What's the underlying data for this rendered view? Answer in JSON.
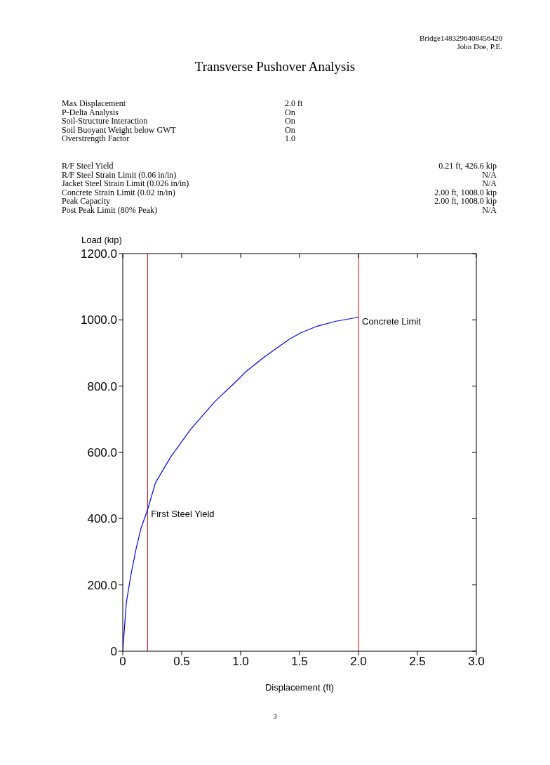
{
  "chart_data": {
    "type": "line",
    "title": "Transverse Pushover Analysis",
    "xlabel": "Displacement (ft)",
    "ylabel": "Load (kip)",
    "annotations": [
      "Bridge1483296408456420",
      "John Doe, P.E.",
      "Max Displacement",
      "2.0 ft",
      "P-Delta Analysis",
      "On",
      "Soil-Structure Interaction",
      "On",
      "Soil Buoyant Weight below GWT",
      "On",
      "Overstrength Factor",
      "1.0",
      "R/F Steel Yield",
      "0.21 ft, 426.6 kip",
      "R/F Steel Strain Limit (0.06 in/in)",
      "N/A",
      "Jacket Steel Strain Limit (0.026 in/in)",
      "N/A",
      "Concrete Strain Limit (0.02 in/in)",
      "2.00 ft, 1008.0 kip",
      "Peak Capacity",
      "2.00 ft, 1008.0 kip",
      "Post Peak Limit (80% Peak)",
      "N/A",
      "3"
    ],
    "x": [
      0,
      0.03,
      0.071,
      0.112,
      0.153,
      0.21,
      0.277,
      0.41,
      0.575,
      0.78,
      0.975,
      1.036,
      1.2,
      1.41,
      1.51,
      1.65,
      1.81,
      2.0
    ],
    "series": [
      {
        "color": "#0000ff",
        "values": [
          0,
          146,
          234,
          307,
          369,
          426.6,
          508,
          588,
          669,
          753,
          819,
          841,
          888,
          941,
          961,
          981,
          996,
          1008.0
        ]
      }
    ],
    "xlim": [
      0,
      3
    ],
    "xticks": [
      0,
      0.5,
      {
        "value": 1,
        "label": "1.0"
      },
      1.5,
      {
        "value": 2,
        "label": "2.0"
      },
      2.5,
      {
        "value": 3,
        "label": "3.0"
      }
    ],
    "ylim": [
      0,
      1200
    ],
    "yticks": [
      0,
      {
        "value": 200,
        "label": "200.0"
      },
      {
        "value": 400,
        "label": "400.0"
      },
      {
        "value": 600,
        "label": "600.0"
      },
      {
        "value": 800,
        "label": "800.0"
      },
      {
        "value": 1000,
        "label": "1000.0"
      },
      {
        "value": 1200,
        "label": "1200.0"
      }
    ],
    "ref_lines": [
      {
        "axis": "x",
        "value": 0.21,
        "label": "First Steel Yield",
        "color": "#a00000"
      },
      {
        "axis": "x",
        "value": 2.0,
        "label": "Concrete Limit",
        "color": "#ff0000"
      }
    ],
    "marker": "none",
    "line_style": "solid"
  }
}
